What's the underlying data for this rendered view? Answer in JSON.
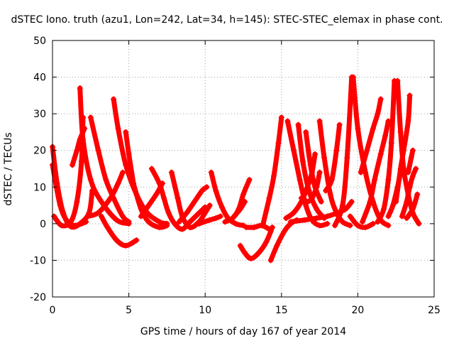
{
  "chart_data": {
    "type": "scatter",
    "title": "dSTEC Iono. truth (azu1, Lon=242, Lat=34, h=145): STEC-STEC_elemax in phase cont.",
    "xlabel": "GPS time / hours of day 167 of year 2014",
    "ylabel": "dSTEC  / TECUs",
    "xlim": [
      0,
      25
    ],
    "ylim": [
      -20,
      50
    ],
    "xticks": [
      "0",
      "5",
      "10",
      "15",
      "20",
      "25"
    ],
    "yticks": [
      "-20",
      "-10",
      "0",
      "10",
      "20",
      "30",
      "40",
      "50"
    ],
    "grid": true,
    "marker": "+",
    "color": "#ff0000",
    "arcs": [
      [
        [
          0.0,
          21.0
        ],
        [
          0.3,
          11.0
        ],
        [
          0.7,
          3.0
        ],
        [
          1.2,
          -0.8
        ],
        [
          1.8,
          0.0
        ],
        [
          2.4,
          3.0
        ],
        [
          2.6,
          9.0
        ]
      ],
      [
        [
          0.0,
          16.0
        ],
        [
          0.5,
          5.0
        ],
        [
          1.0,
          0.5
        ],
        [
          1.5,
          -0.5
        ],
        [
          2.2,
          0.5
        ]
      ],
      [
        [
          0.1,
          2.0
        ],
        [
          0.6,
          -0.5
        ],
        [
          1.2,
          0.5
        ],
        [
          1.6,
          6.0
        ],
        [
          1.9,
          17.0
        ],
        [
          2.0,
          29.0
        ]
      ],
      [
        [
          1.8,
          37.0
        ],
        [
          2.0,
          23.0
        ],
        [
          2.5,
          12.0
        ],
        [
          3.2,
          6.0
        ],
        [
          4.2,
          1.0
        ],
        [
          5.0,
          0.0
        ]
      ],
      [
        [
          1.3,
          16.0
        ],
        [
          1.6,
          20.0
        ],
        [
          1.8,
          23.0
        ],
        [
          2.1,
          26.0
        ]
      ],
      [
        [
          2.5,
          29.0
        ],
        [
          3.0,
          20.0
        ],
        [
          3.5,
          12.0
        ],
        [
          4.0,
          7.0
        ],
        [
          4.6,
          2.0
        ],
        [
          5.0,
          0.5
        ]
      ],
      [
        [
          4.0,
          34.0
        ],
        [
          4.3,
          26.0
        ],
        [
          4.8,
          16.0
        ],
        [
          5.5,
          8.0
        ],
        [
          6.2,
          3.0
        ],
        [
          7.0,
          0.5
        ],
        [
          7.5,
          0.0
        ]
      ],
      [
        [
          4.8,
          25.0
        ],
        [
          5.0,
          19.0
        ],
        [
          5.3,
          11.0
        ]
      ],
      [
        [
          2.3,
          2.0
        ],
        [
          3.0,
          3.0
        ],
        [
          3.8,
          7.0
        ],
        [
          4.3,
          11.0
        ],
        [
          4.6,
          14.0
        ]
      ],
      [
        [
          3.2,
          2.0
        ],
        [
          3.6,
          -1.0
        ],
        [
          4.2,
          -4.5
        ],
        [
          4.8,
          -6.0
        ],
        [
          5.5,
          -4.5
        ]
      ],
      [
        [
          5.3,
          11.0
        ],
        [
          5.8,
          4.0
        ],
        [
          6.3,
          0.5
        ],
        [
          7.0,
          -1.0
        ],
        [
          7.5,
          -0.5
        ]
      ],
      [
        [
          5.8,
          2.0
        ],
        [
          6.3,
          5.0
        ],
        [
          6.8,
          8.0
        ],
        [
          7.2,
          11.0
        ]
      ],
      [
        [
          6.5,
          15.0
        ],
        [
          7.0,
          11.0
        ],
        [
          7.3,
          7.0
        ],
        [
          7.6,
          3.0
        ],
        [
          8.0,
          0.0
        ],
        [
          8.5,
          -1.5
        ],
        [
          9.0,
          0.5
        ],
        [
          9.5,
          2.5
        ],
        [
          10.0,
          4.5
        ]
      ],
      [
        [
          7.8,
          14.0
        ],
        [
          8.2,
          7.0
        ],
        [
          8.5,
          2.0
        ],
        [
          9.0,
          -1.0
        ],
        [
          9.6,
          0.5
        ],
        [
          10.0,
          3.0
        ],
        [
          10.3,
          5.0
        ]
      ],
      [
        [
          8.3,
          0.5
        ],
        [
          8.8,
          3.0
        ],
        [
          9.3,
          6.0
        ],
        [
          9.8,
          9.0
        ],
        [
          10.1,
          10.0
        ]
      ],
      [
        [
          10.4,
          14.0
        ],
        [
          10.7,
          9.0
        ],
        [
          11.1,
          4.5
        ],
        [
          11.5,
          1.5
        ],
        [
          12.0,
          0.0
        ],
        [
          12.5,
          -0.5
        ]
      ],
      [
        [
          9.6,
          0.0
        ],
        [
          10.3,
          1.0
        ],
        [
          10.7,
          1.5
        ],
        [
          11.0,
          2.0
        ]
      ],
      [
        [
          11.3,
          0.5
        ],
        [
          11.8,
          1.5
        ],
        [
          12.2,
          4.0
        ],
        [
          12.5,
          8.0
        ],
        [
          12.9,
          12.0
        ]
      ],
      [
        [
          11.9,
          2.0
        ],
        [
          12.3,
          4.0
        ],
        [
          12.6,
          6.0
        ]
      ],
      [
        [
          12.3,
          -6.0
        ],
        [
          12.6,
          -8.0
        ],
        [
          13.0,
          -9.5
        ],
        [
          13.5,
          -8.0
        ],
        [
          14.0,
          -5.0
        ],
        [
          14.4,
          -1.0
        ]
      ],
      [
        [
          12.7,
          -1.0
        ],
        [
          13.2,
          -1.0
        ],
        [
          13.7,
          -0.5
        ],
        [
          14.2,
          -1.5
        ]
      ],
      [
        [
          13.8,
          0.0
        ],
        [
          14.2,
          7.0
        ],
        [
          14.5,
          13.0
        ],
        [
          14.8,
          22.0
        ],
        [
          15.0,
          29.0
        ]
      ],
      [
        [
          14.3,
          -10.0
        ],
        [
          14.7,
          -6.0
        ],
        [
          15.2,
          -2.0
        ],
        [
          15.6,
          0.0
        ],
        [
          16.0,
          1.0
        ]
      ],
      [
        [
          15.3,
          1.5
        ],
        [
          15.8,
          3.0
        ],
        [
          16.3,
          6.0
        ],
        [
          16.7,
          10.0
        ],
        [
          17.0,
          14.0
        ],
        [
          17.2,
          19.0
        ]
      ],
      [
        [
          15.4,
          28.0
        ],
        [
          15.8,
          20.0
        ],
        [
          16.2,
          12.0
        ],
        [
          16.6,
          5.0
        ],
        [
          17.0,
          1.0
        ],
        [
          17.5,
          -0.5
        ],
        [
          18.0,
          0.0
        ]
      ],
      [
        [
          16.1,
          27.0
        ],
        [
          16.4,
          17.0
        ],
        [
          16.8,
          9.0
        ],
        [
          17.3,
          4.0
        ],
        [
          17.8,
          1.5
        ]
      ],
      [
        [
          16.3,
          7.0
        ],
        [
          16.7,
          6.0
        ],
        [
          17.0,
          7.0
        ],
        [
          17.3,
          10.0
        ],
        [
          17.5,
          14.0
        ]
      ],
      [
        [
          16.6,
          25.0
        ],
        [
          16.9,
          16.0
        ],
        [
          17.2,
          10.0
        ],
        [
          17.6,
          6.0
        ]
      ],
      [
        [
          17.5,
          28.0
        ],
        [
          17.8,
          18.0
        ],
        [
          18.2,
          8.0
        ],
        [
          18.6,
          3.0
        ],
        [
          19.0,
          0.5
        ],
        [
          19.5,
          -0.5
        ]
      ],
      [
        [
          17.9,
          9.0
        ],
        [
          18.3,
          12.0
        ],
        [
          18.6,
          20.0
        ],
        [
          18.8,
          27.0
        ]
      ],
      [
        [
          15.6,
          0.5
        ],
        [
          16.5,
          1.0
        ],
        [
          17.3,
          1.5
        ],
        [
          18.0,
          2.0
        ],
        [
          18.7,
          3.0
        ],
        [
          19.2,
          4.0
        ],
        [
          19.6,
          6.0
        ]
      ],
      [
        [
          18.5,
          -0.5
        ],
        [
          19.0,
          5.0
        ],
        [
          19.3,
          18.0
        ],
        [
          19.6,
          40.0
        ]
      ],
      [
        [
          19.7,
          40.0
        ],
        [
          20.0,
          26.0
        ],
        [
          20.5,
          14.0
        ],
        [
          21.0,
          6.0
        ],
        [
          21.5,
          1.0
        ],
        [
          22.0,
          -0.5
        ]
      ],
      [
        [
          19.5,
          2.0
        ],
        [
          20.0,
          -0.5
        ],
        [
          20.5,
          -1.0
        ],
        [
          21.0,
          0.0
        ]
      ],
      [
        [
          20.3,
          0.5
        ],
        [
          20.8,
          6.0
        ],
        [
          21.1,
          12.0
        ],
        [
          21.5,
          19.0
        ],
        [
          21.8,
          24.0
        ],
        [
          22.0,
          28.0
        ]
      ],
      [
        [
          20.2,
          14.0
        ],
        [
          20.6,
          20.0
        ],
        [
          21.0,
          26.0
        ],
        [
          21.3,
          30.0
        ],
        [
          21.5,
          34.0
        ]
      ],
      [
        [
          21.3,
          0.5
        ],
        [
          21.7,
          4.0
        ],
        [
          22.0,
          12.0
        ],
        [
          22.2,
          22.0
        ],
        [
          22.4,
          39.0
        ]
      ],
      [
        [
          22.6,
          39.0
        ],
        [
          22.8,
          25.0
        ],
        [
          23.0,
          15.0
        ],
        [
          23.3,
          8.0
        ],
        [
          23.6,
          3.0
        ],
        [
          24.0,
          0.0
        ]
      ],
      [
        [
          22.0,
          2.0
        ],
        [
          22.3,
          5.0
        ],
        [
          22.6,
          10.0
        ],
        [
          22.8,
          14.0
        ]
      ],
      [
        [
          22.5,
          6.0
        ],
        [
          22.8,
          15.0
        ],
        [
          23.0,
          20.0
        ],
        [
          23.3,
          28.0
        ],
        [
          23.4,
          35.0
        ]
      ],
      [
        [
          23.3,
          14.0
        ],
        [
          23.5,
          18.0
        ],
        [
          23.6,
          20.0
        ]
      ],
      [
        [
          22.9,
          2.0
        ],
        [
          23.2,
          6.0
        ],
        [
          23.4,
          10.0
        ],
        [
          23.6,
          13.0
        ],
        [
          23.8,
          15.0
        ]
      ],
      [
        [
          23.2,
          1.5
        ],
        [
          23.6,
          4.0
        ],
        [
          23.9,
          8.0
        ]
      ]
    ]
  }
}
